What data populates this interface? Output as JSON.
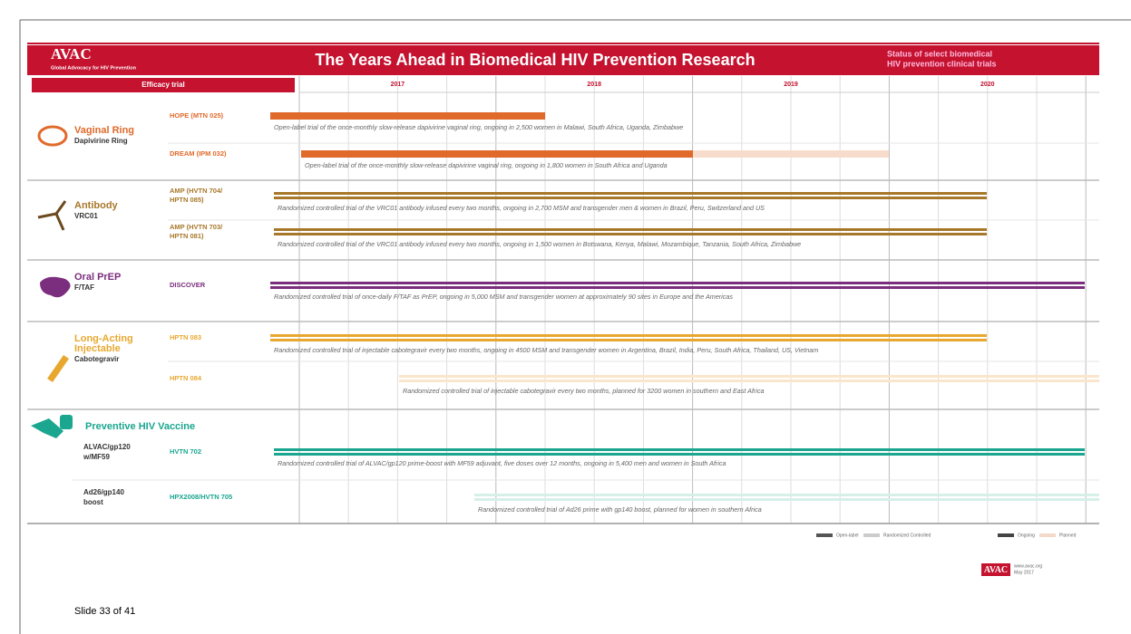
{
  "header": {
    "logo": "AVAC",
    "logo_tagline": "Global Advocacy for HIV Prevention",
    "title": "The Years Ahead in Biomedical HIV Prevention Research",
    "subtitle_lines": [
      "Status of select biomedical",
      "HIV prevention clinical trials"
    ]
  },
  "tab": "Efficacy trial",
  "years": [
    "2017",
    "2018",
    "2019",
    "2020"
  ],
  "groups": [
    {
      "name_lines": [
        "Vaginal Ring"
      ],
      "product_lines": [
        "Dapivirine Ring"
      ],
      "trials": [
        {
          "name_lines": [
            "HOPE (MTN 025)"
          ],
          "description": "Open-label trial of the once-monthly slow-release dapivirine vaginal ring, ongoing in 2,500 women in Malawi, South Africa, Uganda, Zimbabwe"
        },
        {
          "name_lines": [
            "DREAM (IPM 032)"
          ],
          "description": "Open-label trial of the once-monthly slow-release dapivirine vaginal ring, ongoing in 1,800 women in South Africa and Uganda"
        }
      ]
    },
    {
      "name_lines": [
        "Antibody"
      ],
      "product_lines": [
        "VRC01"
      ],
      "trials": [
        {
          "name_lines": [
            "AMP (HVTN 704/",
            "HPTN 085)"
          ],
          "description": "Randomized controlled trial of the VRC01 antibody infused every two months, ongoing in 2,700 MSM and transgender men & women in Brazil, Peru, Switzerland and US"
        },
        {
          "name_lines": [
            "AMP (HVTN 703/",
            "HPTN 081)"
          ],
          "description": "Randomized controlled trial of the VRC01 antibody infused every two months, ongoing in 1,500 women in Botswana, Kenya, Malawi, Mozambique, Tanzania, South Africa, Zimbabwe"
        }
      ]
    },
    {
      "name_lines": [
        "Oral PrEP"
      ],
      "product_lines": [
        "F/TAF"
      ],
      "trials": [
        {
          "name_lines": [
            "DISCOVER"
          ],
          "description": "Randomized controlled trial of once-daily F/TAF as PrEP, ongoing in 5,000 MSM and transgender women at approximately 90 sites in Europe and the Americas"
        }
      ]
    },
    {
      "name_lines": [
        "Long-Acting",
        "Injectable"
      ],
      "product_lines": [
        "Cabotegravir"
      ],
      "trials": [
        {
          "name_lines": [
            "HPTN 083"
          ],
          "description": "Randomized controlled trial of injectable cabotegravir every two months, ongoing in 4500 MSM and transgender women in Argentina, Brazil, India, Peru, South Africa, Thailand, US, Vietnam"
        },
        {
          "name_lines": [
            "HPTN 084"
          ],
          "description": "Randomized controlled trial of injectable cabotegravir every two months, planned for 3200 women in southern and East Africa"
        }
      ]
    },
    {
      "name_lines": [
        "Preventive HIV Vaccine"
      ],
      "trials": [
        {
          "product_lines": [
            "ALVAC/gp120",
            "w/MF59"
          ],
          "name_lines": [
            "HVTN 702"
          ],
          "description": "Randomized controlled trial of ALVAC/gp120 prime-boost with MF59 adjuvant, five doses over 12 months, ongoing in 5,400 men and women in South Africa"
        },
        {
          "product_lines": [
            "Ad26/gp140",
            "boost"
          ],
          "name_lines": [
            "HPX2008/HVTN 705"
          ],
          "description": "Randomized controlled trial of Ad26 prime with gp140 boost, planned for women in southern Africa"
        }
      ]
    }
  ],
  "legend": [
    "Open-label",
    "Randomized Controlled",
    "Ongoing",
    "Planned"
  ],
  "footer": {
    "logo": "AVAC",
    "lines": [
      "www.avac.org",
      "May 2017"
    ]
  },
  "slide_label": "Slide 33 of 41"
}
